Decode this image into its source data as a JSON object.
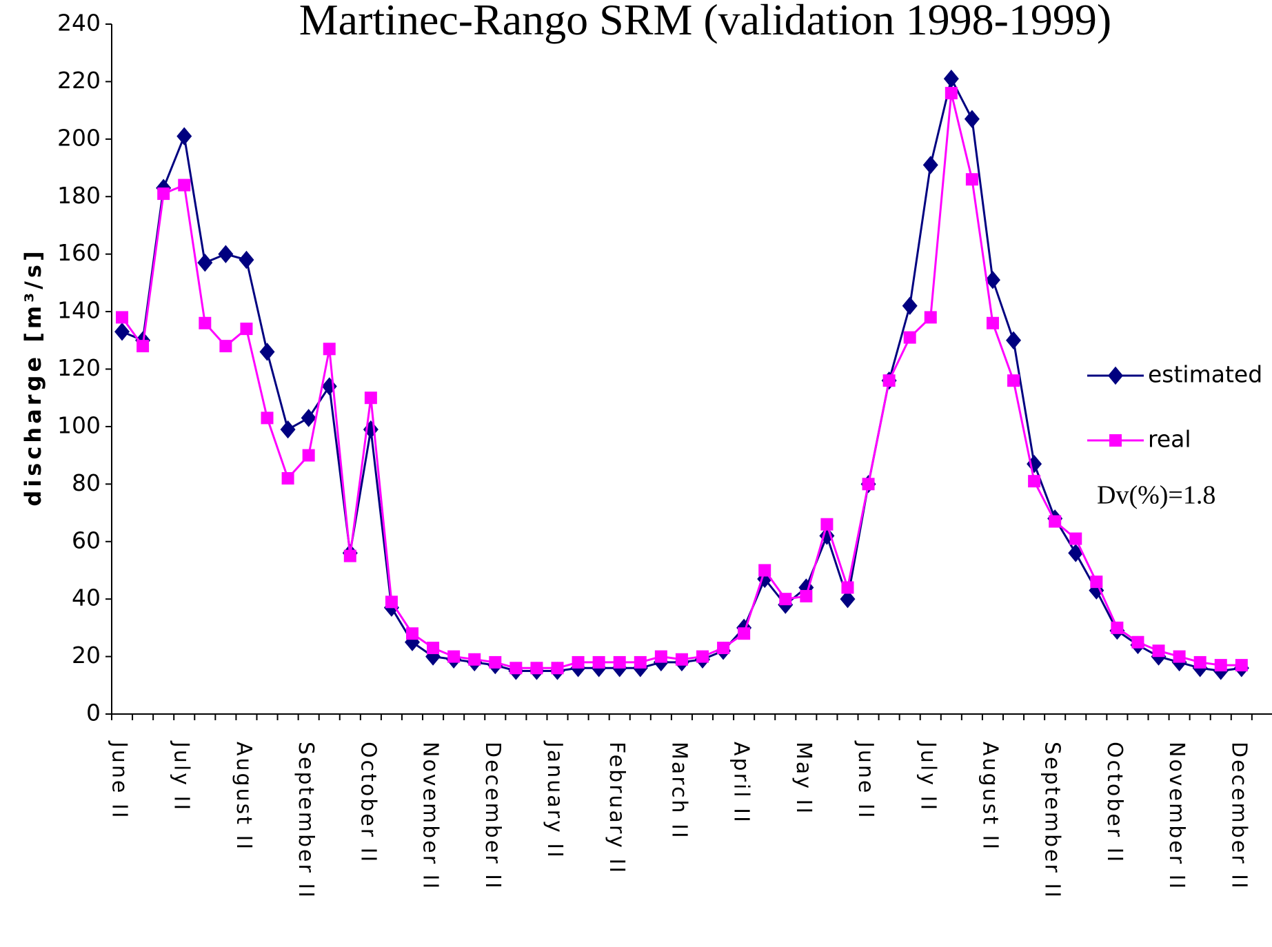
{
  "chart_data": {
    "type": "line",
    "title": "Martinec-Rango SRM (validation 1998-1999)",
    "y_label": "discharge [m³/s]",
    "annotation": "Dv(%)=1.8",
    "categories": [
      "June II",
      null,
      null,
      "July II",
      null,
      null,
      "August II",
      null,
      null,
      "September II",
      null,
      null,
      "October II",
      null,
      null,
      "November II",
      null,
      null,
      "December II",
      null,
      null,
      "January II",
      null,
      null,
      "February II",
      null,
      null,
      "March II",
      null,
      null,
      "April II",
      null,
      null,
      "May II",
      null,
      null,
      "June II",
      null,
      null,
      "July II",
      null,
      null,
      "August II",
      null,
      null,
      "September II",
      null,
      null,
      "October II",
      null,
      null,
      "November II",
      null,
      null,
      "December II"
    ],
    "series": [
      {
        "name": "estimated",
        "color": "#000080",
        "marker": "diamond",
        "values": [
          133,
          130,
          183,
          201,
          157,
          160,
          158,
          126,
          99,
          103,
          114,
          56,
          99,
          37,
          25,
          20,
          19,
          18,
          17,
          15,
          15,
          15,
          16,
          16,
          16,
          16,
          18,
          18,
          19,
          22,
          30,
          47,
          38,
          44,
          62,
          40,
          80,
          116,
          142,
          191,
          221,
          207,
          151,
          130,
          87,
          68,
          56,
          43,
          29,
          24,
          20,
          18,
          16,
          15,
          16
        ]
      },
      {
        "name": "real",
        "color": "#ff00ff",
        "marker": "square",
        "values": [
          138,
          128,
          181,
          184,
          136,
          128,
          134,
          103,
          82,
          90,
          127,
          55,
          110,
          39,
          28,
          23,
          20,
          19,
          18,
          16,
          16,
          16,
          18,
          18,
          18,
          18,
          20,
          19,
          20,
          23,
          28,
          50,
          40,
          41,
          66,
          44,
          80,
          116,
          131,
          138,
          216,
          186,
          136,
          116,
          81,
          67,
          61,
          46,
          30,
          25,
          22,
          20,
          18,
          17,
          17
        ]
      }
    ],
    "ylim": [
      0,
      240
    ],
    "yticks": [
      0,
      20,
      40,
      60,
      80,
      100,
      120,
      140,
      160,
      180,
      200,
      220,
      240
    ]
  }
}
